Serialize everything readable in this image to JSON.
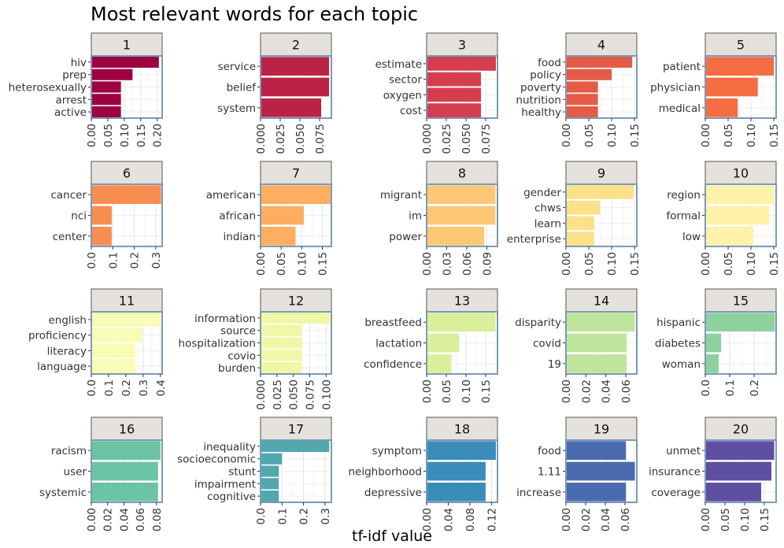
{
  "title": "Most relevant words for each topic",
  "xlabel": "tf-idf value",
  "chart_data": {
    "type": "bar",
    "orientation": "horizontal",
    "title": "Most relevant words for each topic",
    "xlabel": "tf-idf value",
    "ylabel": "",
    "grid": true,
    "legend": "none",
    "facets": [
      {
        "label": "1",
        "color": "#9E0142",
        "xlim": [
          0,
          0.215
        ],
        "ticks": [
          {
            "v": 0,
            "t": "0.00"
          },
          {
            "v": 0.05,
            "t": "0.05"
          },
          {
            "v": 0.1,
            "t": "0.10"
          },
          {
            "v": 0.15,
            "t": "0.15"
          },
          {
            "v": 0.2,
            "t": "0.20"
          }
        ],
        "categories": [
          "hiv",
          "prep",
          "heterosexually",
          "arrest",
          "active"
        ],
        "values": [
          0.205,
          0.125,
          0.09,
          0.09,
          0.09
        ]
      },
      {
        "label": "2",
        "color": "#BB2346",
        "xlim": [
          0,
          0.09
        ],
        "ticks": [
          {
            "v": 0,
            "t": "0.000"
          },
          {
            "v": 0.025,
            "t": "0.025"
          },
          {
            "v": 0.05,
            "t": "0.050"
          },
          {
            "v": 0.075,
            "t": "0.075"
          }
        ],
        "categories": [
          "service",
          "belief",
          "system"
        ],
        "values": [
          0.087,
          0.087,
          0.077
        ]
      },
      {
        "label": "3",
        "color": "#D53E4F",
        "xlim": [
          0,
          0.09
        ],
        "ticks": [
          {
            "v": 0,
            "t": "0.000"
          },
          {
            "v": 0.025,
            "t": "0.025"
          },
          {
            "v": 0.05,
            "t": "0.050"
          },
          {
            "v": 0.075,
            "t": "0.075"
          }
        ],
        "categories": [
          "estimate",
          "sector",
          "oxygen",
          "cost"
        ],
        "values": [
          0.088,
          0.069,
          0.069,
          0.069
        ]
      },
      {
        "label": "4",
        "color": "#E45C48",
        "xlim": [
          0,
          0.155
        ],
        "ticks": [
          {
            "v": 0,
            "t": "0.00"
          },
          {
            "v": 0.05,
            "t": "0.05"
          },
          {
            "v": 0.1,
            "t": "0.10"
          },
          {
            "v": 0.15,
            "t": "0.15"
          }
        ],
        "categories": [
          "food",
          "policy",
          "poverty",
          "nutrition",
          "healthy"
        ],
        "values": [
          0.145,
          0.1,
          0.07,
          0.07,
          0.07
        ]
      },
      {
        "label": "5",
        "color": "#F46D43",
        "xlim": [
          0,
          0.155
        ],
        "ticks": [
          {
            "v": 0,
            "t": "0.00"
          },
          {
            "v": 0.05,
            "t": "0.05"
          },
          {
            "v": 0.1,
            "t": "0.10"
          },
          {
            "v": 0.15,
            "t": "0.15"
          }
        ],
        "categories": [
          "patient",
          "physician",
          "medical"
        ],
        "values": [
          0.15,
          0.115,
          0.071
        ]
      },
      {
        "label": "6",
        "color": "#F88D51",
        "xlim": [
          0,
          0.33
        ],
        "ticks": [
          {
            "v": 0,
            "t": "0.0"
          },
          {
            "v": 0.1,
            "t": "0.1"
          },
          {
            "v": 0.2,
            "t": "0.2"
          },
          {
            "v": 0.3,
            "t": "0.3"
          }
        ],
        "categories": [
          "cancer",
          "nci",
          "center"
        ],
        "values": [
          0.325,
          0.095,
          0.095
        ]
      },
      {
        "label": "7",
        "color": "#FDAE61",
        "xlim": [
          0,
          0.172
        ],
        "ticks": [
          {
            "v": 0,
            "t": "0.00"
          },
          {
            "v": 0.05,
            "t": "0.05"
          },
          {
            "v": 0.1,
            "t": "0.10"
          },
          {
            "v": 0.15,
            "t": "0.15"
          }
        ],
        "categories": [
          "american",
          "african",
          "indian"
        ],
        "values": [
          0.17,
          0.105,
          0.085
        ]
      },
      {
        "label": "8",
        "color": "#FDC776",
        "xlim": [
          0,
          0.106
        ],
        "ticks": [
          {
            "v": 0,
            "t": "0.00"
          },
          {
            "v": 0.03,
            "t": "0.03"
          },
          {
            "v": 0.06,
            "t": "0.06"
          },
          {
            "v": 0.09,
            "t": "0.09"
          }
        ],
        "categories": [
          "migrant",
          "im",
          "power"
        ],
        "values": [
          0.103,
          0.103,
          0.086
        ]
      },
      {
        "label": "9",
        "color": "#FEE08B",
        "xlim": [
          0,
          0.155
        ],
        "ticks": [
          {
            "v": 0,
            "t": "0.00"
          },
          {
            "v": 0.05,
            "t": "0.05"
          },
          {
            "v": 0.1,
            "t": "0.10"
          },
          {
            "v": 0.15,
            "t": "0.15"
          }
        ],
        "categories": [
          "gender",
          "chws",
          "learn",
          "enterprise"
        ],
        "values": [
          0.148,
          0.075,
          0.062,
          0.062
        ]
      },
      {
        "label": "10",
        "color": "#FEF2A9",
        "xlim": [
          0,
          0.155
        ],
        "ticks": [
          {
            "v": 0,
            "t": "0.00"
          },
          {
            "v": 0.05,
            "t": "0.05"
          },
          {
            "v": 0.1,
            "t": "0.10"
          },
          {
            "v": 0.15,
            "t": "0.15"
          }
        ],
        "categories": [
          "region",
          "formal",
          "low"
        ],
        "values": [
          0.15,
          0.14,
          0.105
        ]
      },
      {
        "label": "11",
        "color": "#F8FCB4",
        "xlim": [
          0,
          0.41
        ],
        "ticks": [
          {
            "v": 0,
            "t": "0.0"
          },
          {
            "v": 0.1,
            "t": "0.1"
          },
          {
            "v": 0.2,
            "t": "0.2"
          },
          {
            "v": 0.3,
            "t": "0.3"
          },
          {
            "v": 0.4,
            "t": "0.4"
          }
        ],
        "categories": [
          "english",
          "proficiency",
          "literacy",
          "language"
        ],
        "values": [
          0.4,
          0.295,
          0.255,
          0.255
        ]
      },
      {
        "label": "12",
        "color": "#EEF8A6",
        "xlim": [
          0,
          0.108
        ],
        "ticks": [
          {
            "v": 0,
            "t": "0.000"
          },
          {
            "v": 0.025,
            "t": "0.025"
          },
          {
            "v": 0.05,
            "t": "0.050"
          },
          {
            "v": 0.075,
            "t": "0.075"
          },
          {
            "v": 0.1,
            "t": "0.100"
          }
        ],
        "categories": [
          "information",
          "source",
          "hospitalization",
          "covio",
          "burden"
        ],
        "values": [
          0.106,
          0.063,
          0.063,
          0.063,
          0.063
        ]
      },
      {
        "label": "13",
        "color": "#D9EF9B",
        "xlim": [
          0,
          0.18
        ],
        "ticks": [
          {
            "v": 0,
            "t": "0.00"
          },
          {
            "v": 0.05,
            "t": "0.05"
          },
          {
            "v": 0.1,
            "t": "0.10"
          },
          {
            "v": 0.15,
            "t": "0.15"
          }
        ],
        "categories": [
          "breastfeed",
          "lactation",
          "confidence"
        ],
        "values": [
          0.175,
          0.083,
          0.063
        ]
      },
      {
        "label": "14",
        "color": "#BFE59D",
        "xlim": [
          0,
          0.071
        ],
        "ticks": [
          {
            "v": 0,
            "t": "0.00"
          },
          {
            "v": 0.02,
            "t": "0.02"
          },
          {
            "v": 0.04,
            "t": "0.04"
          },
          {
            "v": 0.06,
            "t": "0.06"
          }
        ],
        "categories": [
          "disparity",
          "covid",
          "19"
        ],
        "values": [
          0.069,
          0.061,
          0.061
        ]
      },
      {
        "label": "15",
        "color": "#8ED1A0",
        "xlim": [
          0,
          0.29
        ],
        "ticks": [
          {
            "v": 0,
            "t": "0.0"
          },
          {
            "v": 0.1,
            "t": "0.1"
          },
          {
            "v": 0.2,
            "t": "0.2"
          }
        ],
        "categories": [
          "hispanic",
          "diabetes",
          "woman"
        ],
        "values": [
          0.285,
          0.065,
          0.055
        ]
      },
      {
        "label": "16",
        "color": "#6CC4A4",
        "xlim": [
          0,
          0.087
        ],
        "ticks": [
          {
            "v": 0,
            "t": "0.00"
          },
          {
            "v": 0.02,
            "t": "0.02"
          },
          {
            "v": 0.04,
            "t": "0.04"
          },
          {
            "v": 0.06,
            "t": "0.06"
          },
          {
            "v": 0.08,
            "t": "0.08"
          }
        ],
        "categories": [
          "racism",
          "user",
          "systemic"
        ],
        "values": [
          0.085,
          0.082,
          0.082
        ]
      },
      {
        "label": "17",
        "color": "#52A8AE",
        "xlim": [
          0,
          0.33
        ],
        "ticks": [
          {
            "v": 0,
            "t": "0.0"
          },
          {
            "v": 0.1,
            "t": "0.1"
          },
          {
            "v": 0.2,
            "t": "0.2"
          },
          {
            "v": 0.3,
            "t": "0.3"
          }
        ],
        "categories": [
          "inequality",
          "socioeconomic",
          "stunt",
          "impairment",
          "cognitive"
        ],
        "values": [
          0.32,
          0.1,
          0.085,
          0.085,
          0.085
        ]
      },
      {
        "label": "18",
        "color": "#3A8CBA",
        "xlim": [
          0,
          0.131
        ],
        "ticks": [
          {
            "v": 0,
            "t": "0.00"
          },
          {
            "v": 0.04,
            "t": "0.04"
          },
          {
            "v": 0.08,
            "t": "0.08"
          },
          {
            "v": 0.12,
            "t": "0.12"
          }
        ],
        "categories": [
          "symptom",
          "neighborhood",
          "depressive"
        ],
        "values": [
          0.128,
          0.109,
          0.109
        ]
      },
      {
        "label": "19",
        "color": "#4A6BAF",
        "xlim": [
          0,
          0.072
        ],
        "ticks": [
          {
            "v": 0,
            "t": "0.00"
          },
          {
            "v": 0.02,
            "t": "0.02"
          },
          {
            "v": 0.04,
            "t": "0.04"
          },
          {
            "v": 0.06,
            "t": "0.06"
          }
        ],
        "categories": [
          "food",
          "1.11",
          "increase"
        ],
        "values": [
          0.061,
          0.07,
          0.061
        ]
      },
      {
        "label": "20",
        "color": "#5E4FA2",
        "xlim": [
          0,
          0.18
        ],
        "ticks": [
          {
            "v": 0,
            "t": "0.00"
          },
          {
            "v": 0.05,
            "t": "0.05"
          },
          {
            "v": 0.1,
            "t": "0.10"
          },
          {
            "v": 0.15,
            "t": "0.15"
          }
        ],
        "categories": [
          "unmet",
          "insurance",
          "coverage"
        ],
        "values": [
          0.175,
          0.168,
          0.142
        ]
      }
    ]
  }
}
